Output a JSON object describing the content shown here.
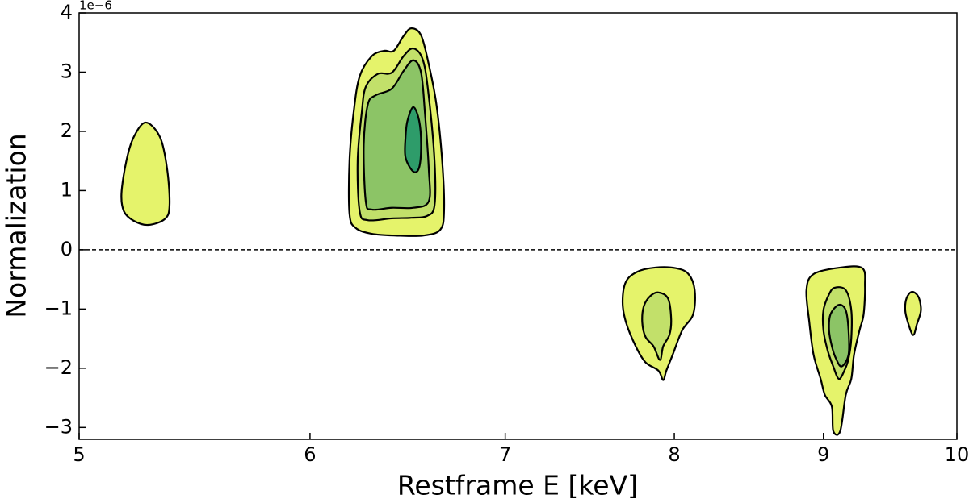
{
  "chart_data": {
    "type": "contour",
    "xlabel": "Restframe E [keV]",
    "ylabel": "Normalization",
    "y_offset_label": "1e−6",
    "xlim": [
      5,
      10
    ],
    "ylim": [
      -3.2,
      4
    ],
    "xscale": "log",
    "xticks": [
      5,
      6,
      7,
      8,
      9,
      10
    ],
    "yticks": [
      {
        "value": -3,
        "label": "−3"
      },
      {
        "value": -2,
        "label": "−2"
      },
      {
        "value": -1,
        "label": "−1"
      },
      0,
      1,
      2,
      3,
      4
    ],
    "hline": 0,
    "contours": [
      {
        "color": "#e5f36b",
        "x": [
          5.27,
          5.33,
          5.36,
          5.37,
          5.35,
          5.28,
          5.22,
          5.18,
          5.17,
          5.19,
          5.22
        ],
        "y": [
          2.15,
          1.9,
          1.36,
          0.75,
          0.52,
          0.42,
          0.49,
          0.65,
          0.95,
          1.5,
          1.9
        ]
      },
      {
        "color": "#e5f36b",
        "x": [
          6.5,
          6.55,
          6.59,
          6.63,
          6.66,
          6.67,
          6.65,
          6.56,
          6.42,
          6.3,
          6.22,
          6.19,
          6.19,
          6.21,
          6.24,
          6.3,
          6.36,
          6.41,
          6.46
        ],
        "y": [
          3.74,
          3.62,
          3.13,
          2.45,
          1.5,
          0.68,
          0.34,
          0.24,
          0.24,
          0.27,
          0.37,
          0.61,
          1.5,
          2.31,
          2.93,
          3.27,
          3.36,
          3.36,
          3.61
        ]
      },
      {
        "color": "#c2e06a",
        "x": [
          6.51,
          6.56,
          6.59,
          6.62,
          6.62,
          6.58,
          6.5,
          6.4,
          6.28,
          6.24,
          6.23,
          6.25,
          6.27,
          6.33,
          6.4,
          6.46
        ],
        "y": [
          3.4,
          3.2,
          2.59,
          1.5,
          0.75,
          0.57,
          0.54,
          0.53,
          0.5,
          0.65,
          1.5,
          2.31,
          2.75,
          2.97,
          2.99,
          3.27
        ]
      },
      {
        "color": "#8cc466",
        "x": [
          6.51,
          6.55,
          6.57,
          6.59,
          6.59,
          6.51,
          6.4,
          6.3,
          6.27,
          6.26,
          6.28,
          6.32,
          6.4,
          6.46
        ],
        "y": [
          3.2,
          2.99,
          2.31,
          1.36,
          0.82,
          0.71,
          0.71,
          0.68,
          0.82,
          1.77,
          2.45,
          2.61,
          2.72,
          3.02
        ]
      },
      {
        "color": "#2e9c6a",
        "x": [
          6.51,
          6.54,
          6.55,
          6.54,
          6.51,
          6.47,
          6.47,
          6.48
        ],
        "y": [
          2.41,
          2.18,
          1.77,
          1.39,
          1.32,
          1.56,
          1.9,
          2.18
        ]
      },
      {
        "color": "#e5f36b",
        "x": [
          7.88,
          8.01,
          8.09,
          8.13,
          8.12,
          8.05,
          7.99,
          7.95,
          7.93,
          7.9,
          7.82,
          7.76,
          7.7,
          7.68,
          7.7,
          7.77
        ],
        "y": [
          -0.3,
          -0.31,
          -0.41,
          -0.68,
          -1.09,
          -1.36,
          -1.77,
          -2.04,
          -2.2,
          -2.04,
          -1.9,
          -1.63,
          -1.22,
          -0.88,
          -0.54,
          -0.37
        ]
      },
      {
        "color": "#c2e06a",
        "x": [
          7.9,
          7.96,
          7.98,
          7.97,
          7.93,
          7.91,
          7.87,
          7.82,
          7.8,
          7.81,
          7.85
        ],
        "y": [
          -0.72,
          -0.82,
          -1.16,
          -1.43,
          -1.63,
          -1.86,
          -1.63,
          -1.47,
          -1.22,
          -0.95,
          -0.78
        ]
      },
      {
        "color": "#e5f36b",
        "x": [
          9.12,
          9.28,
          9.3,
          9.29,
          9.26,
          9.22,
          9.2,
          9.16,
          9.12,
          9.07,
          9.06,
          9.01,
          8.98,
          8.93,
          8.9,
          8.88,
          8.93
        ],
        "y": [
          -0.3,
          -0.31,
          -0.61,
          -1.09,
          -1.36,
          -1.77,
          -2.18,
          -2.45,
          -3.06,
          -3.06,
          -2.65,
          -2.45,
          -2.18,
          -1.77,
          -1.22,
          -0.68,
          -0.41
        ]
      },
      {
        "color": "#c2e06a",
        "x": [
          9.08,
          9.16,
          9.2,
          9.2,
          9.18,
          9.15,
          9.11,
          9.07,
          9.03,
          9.0,
          9.0,
          9.04
        ],
        "y": [
          -0.64,
          -0.68,
          -1.02,
          -1.5,
          -1.84,
          -2.04,
          -2.18,
          -1.97,
          -1.7,
          -1.36,
          -1.02,
          -0.75
        ]
      },
      {
        "color": "#8cc466",
        "x": [
          9.11,
          9.16,
          9.18,
          9.18,
          9.13,
          9.09,
          9.06,
          9.04,
          9.05
        ],
        "y": [
          -0.93,
          -1.02,
          -1.36,
          -1.77,
          -1.97,
          -1.84,
          -1.63,
          -1.36,
          -1.09
        ]
      },
      {
        "color": "#e5f36b",
        "x": [
          9.65,
          9.7,
          9.72,
          9.69,
          9.66,
          9.62,
          9.6,
          9.61
        ],
        "y": [
          -0.71,
          -0.79,
          -1.02,
          -1.25,
          -1.44,
          -1.22,
          -1.02,
          -0.82
        ]
      }
    ]
  }
}
